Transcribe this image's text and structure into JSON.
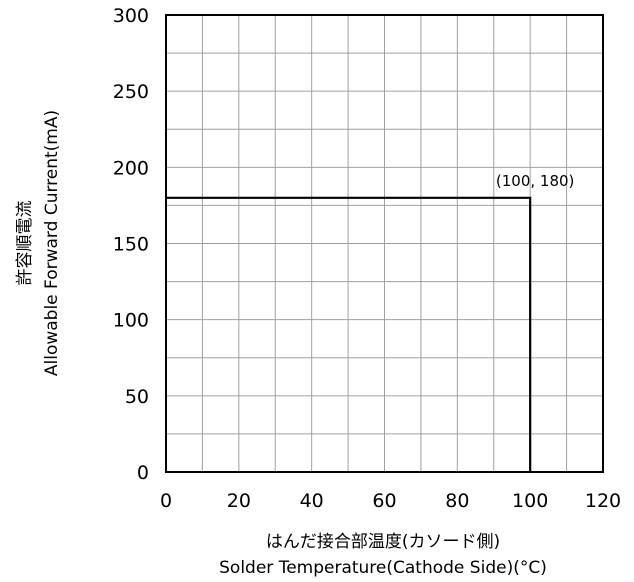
{
  "chart_data": {
    "type": "line",
    "title": "",
    "xlabel_jp": "はんだ接合部温度(カソード側)",
    "xlabel": "Solder Temperature(Cathode Side)(°C)",
    "ylabel_jp": "許容順電流",
    "ylabel": "Allowable Forward Current(mA)",
    "xlim": [
      0,
      120
    ],
    "ylim": [
      0,
      300
    ],
    "x_ticks": [
      0,
      10,
      20,
      30,
      40,
      50,
      60,
      70,
      80,
      90,
      100,
      110,
      120
    ],
    "y_ticks": [
      0,
      25,
      50,
      75,
      100,
      125,
      150,
      175,
      200,
      225,
      250,
      275,
      300
    ],
    "x_tick_labels": [
      "0",
      "20",
      "40",
      "60",
      "80",
      "100",
      "120"
    ],
    "y_tick_labels": [
      "0",
      "50",
      "100",
      "150",
      "200",
      "250",
      "300"
    ],
    "grid": true,
    "legend": "none",
    "series": [
      {
        "x": [
          0,
          100,
          100
        ],
        "y": [
          180,
          180,
          0
        ],
        "color": "#000000"
      }
    ],
    "annotations": [
      {
        "text": "(100, 180)",
        "x": 100,
        "y": 180
      }
    ]
  }
}
